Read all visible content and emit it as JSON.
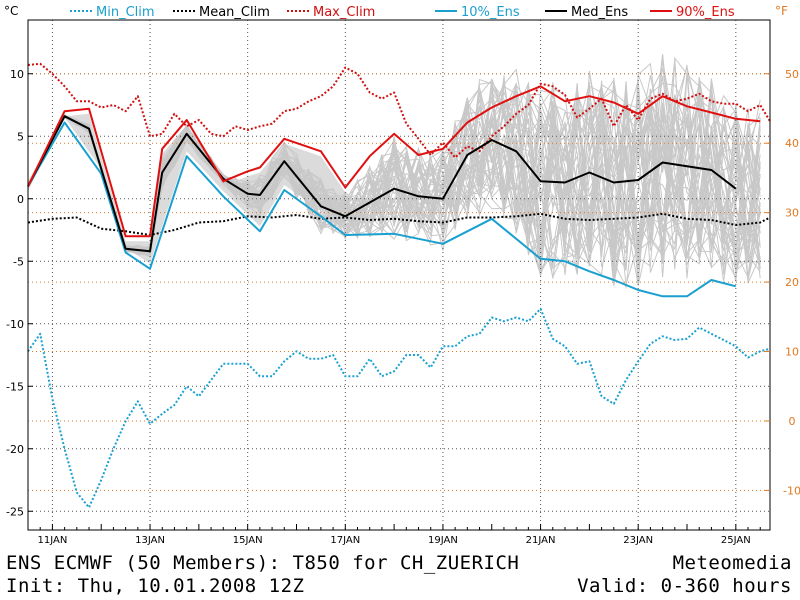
{
  "footer": {
    "line1_left": "ENS ECMWF (50 Members): T850 for CH_ZUERICH",
    "line2_left": "Init: Thu, 10.01.2008 12Z",
    "line1_right": "Meteomedia",
    "line2_right": "Valid: 0-360 hours"
  },
  "chart_data": {
    "type": "line",
    "y_unit_left": "°C",
    "y_unit_right": "°F",
    "ylim": [
      -26.5,
      14.3
    ],
    "y_ticks_left": [
      10,
      5,
      0,
      -5,
      -10,
      -15,
      -20,
      -25
    ],
    "y_ticks_right": [
      50,
      40,
      30,
      20,
      10,
      0,
      -10
    ],
    "x_ticks": [
      "11JAN",
      "13JAN",
      "15JAN",
      "17JAN",
      "19JAN",
      "21JAN",
      "23JAN",
      "25JAN"
    ],
    "x_range_days": [
      10.5,
      25.7
    ],
    "grid": true,
    "legend_position": "top",
    "colors": {
      "min_clim": "#1aa0d0",
      "mean_clim": "#000000",
      "max_clim": "#d01010",
      "ens10": "#1aa0d0",
      "median": "#000000",
      "ens90": "#e01010",
      "members": "#c8c8c8",
      "ens_fill": "#cfcfcf",
      "fahrenheit_axis": "#e07820"
    },
    "series": [
      {
        "name": "Min_Clim",
        "style": "dotted",
        "color": "#1aa0d0",
        "x": [
          10.5,
          10.75,
          11.0,
          11.25,
          11.5,
          11.75,
          12.0,
          12.25,
          12.5,
          12.75,
          13.0,
          13.25,
          13.5,
          13.75,
          14.0,
          14.25,
          14.5,
          14.75,
          15.0,
          15.25,
          15.5,
          15.75,
          16.0,
          16.25,
          16.5,
          16.75,
          17.0,
          17.25,
          17.5,
          17.75,
          18.0,
          18.25,
          18.5,
          18.75,
          19.0,
          19.25,
          19.5,
          19.75,
          20.0,
          20.25,
          20.5,
          20.75,
          21.0,
          21.25,
          21.5,
          21.75,
          22.0,
          22.25,
          22.5,
          22.75,
          23.0,
          23.25,
          23.5,
          23.75,
          24.0,
          24.25,
          24.5,
          24.75,
          25.0,
          25.25,
          25.5,
          25.7
        ],
        "values": [
          -12.2,
          -10.8,
          -16.0,
          -20.0,
          -23.5,
          -24.7,
          -22.5,
          -20.0,
          -17.8,
          -16.2,
          -18.0,
          -17.2,
          -16.5,
          -15.0,
          -15.8,
          -14.5,
          -13.2,
          -13.2,
          -13.2,
          -14.2,
          -14.2,
          -13.0,
          -12.2,
          -12.8,
          -12.8,
          -12.5,
          -14.2,
          -14.2,
          -12.8,
          -14.2,
          -13.8,
          -12.5,
          -12.5,
          -13.5,
          -11.8,
          -11.8,
          -11.0,
          -10.8,
          -9.5,
          -9.8,
          -9.5,
          -9.8,
          -8.8,
          -11.2,
          -11.8,
          -13.2,
          -13.0,
          -15.8,
          -16.4,
          -14.5,
          -13.0,
          -11.6,
          -11.0,
          -11.3,
          -11.2,
          -10.3,
          -10.8,
          -11.3,
          -11.8,
          -12.7,
          -12.2,
          -12.0
        ]
      },
      {
        "name": "Mean_Clim",
        "style": "dotted",
        "color": "#000000",
        "x": [
          10.5,
          11.0,
          11.5,
          12.0,
          12.5,
          13.0,
          13.5,
          14.0,
          14.5,
          15.0,
          15.5,
          16.0,
          16.5,
          17.0,
          17.5,
          18.0,
          18.5,
          19.0,
          19.5,
          20.0,
          20.5,
          21.0,
          21.5,
          22.0,
          22.5,
          23.0,
          23.5,
          24.0,
          24.5,
          25.0,
          25.5,
          25.7
        ],
        "values": [
          -1.9,
          -1.6,
          -1.5,
          -2.4,
          -2.6,
          -2.9,
          -2.5,
          -1.9,
          -1.8,
          -1.4,
          -1.5,
          -1.3,
          -1.6,
          -1.5,
          -1.7,
          -1.6,
          -1.8,
          -1.9,
          -1.5,
          -1.5,
          -1.4,
          -1.2,
          -1.6,
          -1.7,
          -1.6,
          -1.5,
          -1.2,
          -1.6,
          -1.7,
          -2.1,
          -1.9,
          -1.5
        ]
      },
      {
        "name": "Max_Clim",
        "style": "dotted",
        "color": "#d01010",
        "x": [
          10.5,
          10.75,
          11.0,
          11.25,
          11.5,
          11.75,
          12.0,
          12.25,
          12.5,
          12.75,
          13.0,
          13.25,
          13.5,
          13.75,
          14.0,
          14.25,
          14.5,
          14.75,
          15.0,
          15.25,
          15.5,
          15.75,
          16.0,
          16.25,
          16.5,
          16.75,
          17.0,
          17.25,
          17.5,
          17.75,
          18.0,
          18.25,
          18.5,
          18.75,
          19.0,
          19.25,
          19.5,
          19.75,
          20.0,
          20.25,
          20.5,
          20.75,
          21.0,
          21.25,
          21.5,
          21.75,
          22.0,
          22.25,
          22.5,
          22.75,
          23.0,
          23.25,
          23.5,
          23.75,
          24.0,
          24.25,
          24.5,
          24.75,
          25.0,
          25.25,
          25.5,
          25.7
        ],
        "values": [
          10.7,
          10.8,
          10.0,
          9.0,
          7.8,
          7.8,
          7.3,
          7.5,
          7.0,
          8.2,
          5.0,
          5.2,
          6.8,
          5.8,
          6.3,
          5.2,
          5.0,
          5.8,
          5.5,
          5.8,
          6.0,
          7.0,
          7.2,
          7.8,
          8.2,
          9.0,
          10.5,
          10.0,
          8.5,
          8.0,
          8.5,
          6.0,
          4.8,
          3.5,
          4.5,
          3.3,
          4.2,
          3.8,
          5.0,
          5.8,
          6.8,
          7.5,
          9.2,
          9.0,
          8.3,
          6.5,
          7.2,
          8.0,
          5.8,
          7.5,
          6.3,
          8.0,
          8.4,
          7.8,
          8.0,
          8.4,
          7.8,
          7.6,
          7.6,
          7.0,
          7.5,
          6.2
        ]
      },
      {
        "name": "10%_Ens",
        "style": "solid",
        "color": "#1aa0d0",
        "x": [
          10.5,
          11.25,
          12.0,
          12.5,
          13.0,
          13.75,
          14.5,
          15.25,
          15.75,
          16.5,
          17.0,
          18.0,
          19.0,
          20.0,
          21.0,
          21.5,
          22.0,
          22.5,
          23.0,
          23.5,
          24.0,
          24.5,
          25.0
        ],
        "values": [
          1.0,
          6.1,
          2.0,
          -4.3,
          -5.6,
          3.4,
          0.2,
          -2.6,
          0.7,
          -1.4,
          -2.9,
          -2.8,
          -3.6,
          -1.6,
          -4.8,
          -5.0,
          -5.8,
          -6.5,
          -7.3,
          -7.8,
          -7.8,
          -6.5,
          -7.0
        ]
      },
      {
        "name": "Med_Ens",
        "style": "solid",
        "color": "#000000",
        "x": [
          10.5,
          11.25,
          11.75,
          12.5,
          13.0,
          13.25,
          13.75,
          14.5,
          15.0,
          15.25,
          15.75,
          16.5,
          17.0,
          17.5,
          18.0,
          18.5,
          19.0,
          19.5,
          20.0,
          20.5,
          21.0,
          21.5,
          22.0,
          22.5,
          23.0,
          23.5,
          24.0,
          24.5,
          25.0
        ],
        "values": [
          1.0,
          6.6,
          5.6,
          -4.0,
          -4.2,
          2.1,
          5.2,
          1.6,
          0.4,
          0.3,
          3.0,
          -0.6,
          -1.4,
          -0.3,
          0.8,
          0.2,
          0.0,
          3.5,
          4.7,
          3.8,
          1.4,
          1.3,
          2.1,
          1.3,
          1.5,
          2.9,
          2.6,
          2.3,
          0.8
        ]
      },
      {
        "name": "90%_Ens",
        "style": "solid",
        "color": "#e01010",
        "x": [
          10.5,
          11.25,
          11.75,
          12.5,
          13.0,
          13.25,
          13.75,
          14.5,
          15.0,
          15.25,
          15.75,
          16.5,
          17.0,
          17.5,
          18.0,
          18.5,
          19.0,
          19.5,
          20.0,
          20.5,
          21.0,
          21.5,
          22.0,
          22.5,
          23.0,
          23.5,
          24.0,
          24.5,
          25.0,
          25.5
        ],
        "values": [
          1.0,
          7.0,
          7.2,
          -3.0,
          -3.0,
          4.0,
          6.3,
          1.4,
          2.2,
          2.5,
          4.8,
          3.8,
          0.9,
          3.4,
          5.2,
          3.5,
          4.0,
          6.1,
          7.3,
          8.2,
          9.0,
          7.8,
          8.2,
          7.7,
          6.8,
          8.2,
          7.4,
          6.9,
          6.4,
          6.2
        ]
      }
    ]
  }
}
